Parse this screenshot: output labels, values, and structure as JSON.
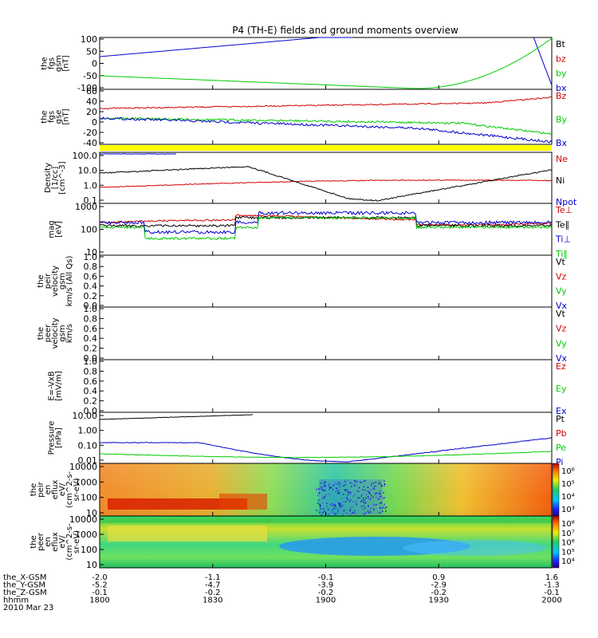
{
  "title": "P4 (TH-E) fields and ground moments overview",
  "colors": {
    "black": "#000000",
    "red": "#d00000",
    "green": "#00cc00",
    "blue": "#0000cc",
    "yellow": "#ffff00"
  },
  "panels": [
    {
      "id": "fgs_gsm",
      "ylabel": [
        "the",
        "fgs",
        "gsm",
        "[nT]"
      ],
      "ticks": [
        "100",
        "50",
        "0",
        "-50",
        "-100"
      ],
      "legend": [
        {
          "label": "Bt",
          "color": "#000000"
        },
        {
          "label": "bz",
          "color": "#d00000"
        },
        {
          "label": "by",
          "color": "#00cc00"
        },
        {
          "label": "bx",
          "color": "#0000cc"
        }
      ]
    },
    {
      "id": "fgs_gse",
      "ylabel": [
        "the",
        "fgs",
        "gse",
        "[nT]"
      ],
      "ticks": [
        "60",
        "40",
        "20",
        "0",
        "-20",
        "-40"
      ],
      "legend": [
        {
          "label": "Bz",
          "color": "#d00000"
        },
        {
          "label": "By",
          "color": "#00cc00"
        },
        {
          "label": "Bx",
          "color": "#0000cc"
        }
      ]
    },
    {
      "id": "density",
      "ylabel": [
        "Density",
        "[1/cc]",
        "[cm^-3]"
      ],
      "ticks": [
        "100.0",
        "10.0",
        "1.0",
        "0.1"
      ],
      "legend": [
        {
          "label": "Ne",
          "color": "#d00000"
        },
        {
          "label": "Ni",
          "color": "#000000"
        },
        {
          "label": "Npot",
          "color": "#0000cc"
        }
      ]
    },
    {
      "id": "temperature",
      "ylabel": [
        "mag",
        "[eV]"
      ],
      "ticks": [
        "1000",
        "100",
        "10"
      ],
      "legend": [
        {
          "label": "Te⊥",
          "color": "#d00000"
        },
        {
          "label": "Te∥",
          "color": "#000000"
        },
        {
          "label": "Ti⊥",
          "color": "#0000cc"
        },
        {
          "label": "Ti∥",
          "color": "#00cc00"
        }
      ]
    },
    {
      "id": "peir_velocity",
      "ylabel": [
        "the",
        "peir",
        "velocity",
        "gsm",
        "km/s (All Qs)"
      ],
      "ticks": [
        "1.0",
        "0.8",
        "0.6",
        "0.4",
        "0.2",
        "0.0"
      ],
      "legend": [
        {
          "label": "Vt",
          "color": "#000000"
        },
        {
          "label": "Vz",
          "color": "#d00000"
        },
        {
          "label": "Vy",
          "color": "#00cc00"
        },
        {
          "label": "Vx",
          "color": "#0000cc"
        }
      ]
    },
    {
      "id": "peer_velocity",
      "ylabel": [
        "the",
        "peer",
        "velocity",
        "gsm",
        "km/s"
      ],
      "ticks": [
        "1.0",
        "0.8",
        "0.6",
        "0.4",
        "0.2",
        "0.0"
      ],
      "legend": [
        {
          "label": "Vt",
          "color": "#000000"
        },
        {
          "label": "Vz",
          "color": "#d00000"
        },
        {
          "label": "Vy",
          "color": "#00cc00"
        },
        {
          "label": "Vx",
          "color": "#0000cc"
        }
      ]
    },
    {
      "id": "efield",
      "ylabel": [
        "E=-VxB",
        "[mV/m]"
      ],
      "ticks": [
        "1.0",
        "0.8",
        "0.6",
        "0.4",
        "0.2",
        "0.0"
      ],
      "legend": [
        {
          "label": "Ez",
          "color": "#d00000"
        },
        {
          "label": "Ey",
          "color": "#00cc00"
        },
        {
          "label": "Ex",
          "color": "#0000cc"
        }
      ]
    },
    {
      "id": "pressure",
      "ylabel": [
        "Pressure",
        "[nPa]"
      ],
      "ticks": [
        "10.00",
        "1.00",
        "0.10",
        "0.01"
      ],
      "legend": [
        {
          "label": "Pt",
          "color": "#000000"
        },
        {
          "label": "Pb",
          "color": "#d00000"
        },
        {
          "label": "Pe",
          "color": "#00cc00"
        },
        {
          "label": "Pi",
          "color": "#0000cc"
        }
      ]
    },
    {
      "id": "peir_spec",
      "ylabel": [
        "the",
        "peir",
        "en",
        "eflux",
        "eV/",
        "(cm^2-s-",
        "sr-eV)"
      ],
      "ticks": [
        "10000",
        "1000",
        "100",
        "10"
      ],
      "colorbar": [
        "10⁶",
        "10⁵",
        "10⁴",
        "10³"
      ]
    },
    {
      "id": "peer_spec",
      "ylabel": [
        "the",
        "peer",
        "en",
        "eflux",
        "eV/",
        "(cm^2-s-",
        "sr-eV)"
      ],
      "ticks": [
        "10000",
        "1000",
        "100",
        "10"
      ],
      "colorbar": [
        "10⁸",
        "10⁷",
        "10⁶",
        "10⁵",
        "10⁴"
      ]
    }
  ],
  "xaxis": {
    "rows": [
      {
        "label": "the_X-GSM",
        "values": [
          "-2.0",
          "-1.1",
          "-0.1",
          "0.9",
          "1.6"
        ]
      },
      {
        "label": "the_Y-GSM",
        "values": [
          "-5.2",
          "-4.7",
          "-3.9",
          "-2.9",
          "-1.3"
        ]
      },
      {
        "label": "the_Z-GSM",
        "values": [
          "-0.1",
          "-0.2",
          "-0.2",
          "-0.2",
          "-0.1"
        ]
      },
      {
        "label": "hhmm",
        "values": [
          "1800",
          "1830",
          "1900",
          "1930",
          "2000"
        ]
      }
    ],
    "date": "2010 Mar 23"
  },
  "chart_data": [
    {
      "type": "line",
      "title": "P4 (TH-E) fields and ground moments overview",
      "ylabel": "the fgs gsm [nT]",
      "ylim": [
        -100,
        100
      ],
      "x": [
        "1800",
        "1830",
        "1900",
        "1930",
        "2000"
      ],
      "series": [
        {
          "name": "bx",
          "values": [
            12,
            40,
            95,
            null,
            100
          ]
        },
        {
          "name": "by",
          "values": [
            -52,
            -75,
            -100,
            -100,
            100
          ]
        }
      ]
    },
    {
      "type": "line",
      "ylabel": "the fgs gse [nT]",
      "ylim": [
        -50,
        60
      ],
      "x": [
        "1800",
        "1830",
        "1900",
        "1930",
        "2000"
      ],
      "series": [
        {
          "name": "Bz",
          "values": [
            21,
            24,
            26,
            28,
            35
          ]
        },
        {
          "name": "By",
          "values": [
            0,
            0,
            -3,
            -5,
            -20
          ]
        },
        {
          "name": "Bx",
          "values": [
            0,
            -2,
            -10,
            -20,
            -30
          ]
        }
      ]
    },
    {
      "type": "line",
      "ylabel": "Density [1/cc]",
      "ylim": [
        0.05,
        200
      ],
      "yscale": "log",
      "x": [
        "1800",
        "1830",
        "1900",
        "1930",
        "2000"
      ],
      "series": [
        {
          "name": "Ne",
          "values": [
            0.5,
            0.6,
            0.4,
            0.8,
            1.5
          ]
        },
        {
          "name": "Ni",
          "values": [
            5,
            12,
            0.15,
            1.5,
            8
          ]
        },
        {
          "name": "Npot",
          "values": [
            150,
            150,
            null,
            null,
            null
          ]
        }
      ]
    },
    {
      "type": "line",
      "ylabel": "mag [eV]",
      "ylim": [
        10,
        1000
      ],
      "yscale": "log",
      "x": [
        "1800",
        "1830",
        "1900",
        "1930",
        "2000"
      ],
      "series": [
        {
          "name": "Te⊥",
          "values": [
            200,
            180,
            350,
            300,
            250
          ]
        },
        {
          "name": "Te∥",
          "values": [
            180,
            160,
            400,
            320,
            220
          ]
        },
        {
          "name": "Ti⊥",
          "values": [
            250,
            90,
            500,
            400,
            300
          ]
        },
        {
          "name": "Ti∥",
          "values": [
            180,
            50,
            450,
            350,
            260
          ]
        }
      ]
    },
    {
      "type": "line",
      "ylabel": "Pressure [nPa]",
      "ylim": [
        0.005,
        20
      ],
      "yscale": "log",
      "x": [
        "1800",
        "1830",
        "1900",
        "1930",
        "2000"
      ],
      "series": [
        {
          "name": "Pt",
          "values": [
            16,
            30,
            null,
            null,
            null
          ]
        },
        {
          "name": "Pi",
          "values": [
            0.18,
            0.13,
            0.008,
            0.05,
            0.35
          ]
        },
        {
          "name": "Pe",
          "values": [
            0.025,
            0.025,
            0.015,
            0.02,
            0.03
          ]
        }
      ]
    },
    {
      "type": "heatmap",
      "ylabel": "the peir en eflux",
      "ylim": [
        5,
        20000
      ],
      "yscale": "log",
      "colorbar": [
        "10³",
        "10⁴",
        "10⁵",
        "10⁶"
      ]
    },
    {
      "type": "heatmap",
      "ylabel": "the peer en eflux",
      "ylim": [
        5,
        20000
      ],
      "yscale": "log",
      "colorbar": [
        "10⁴",
        "10⁵",
        "10⁶",
        "10⁷",
        "10⁸"
      ]
    }
  ]
}
